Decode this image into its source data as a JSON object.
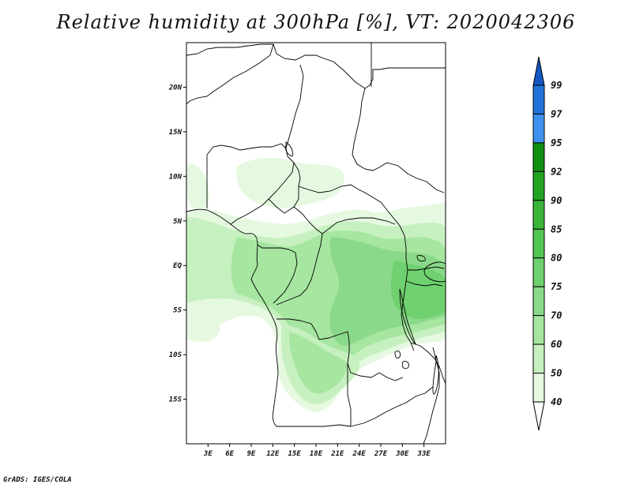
{
  "title": "Relative humidity at 300hPa [%], VT: 2020042306",
  "credit": "GrADS: IGES/COLA",
  "map": {
    "lon_range": [
      0,
      36
    ],
    "lat_range": [
      -20,
      25
    ],
    "lat_ticks": [
      {
        "lat": 20,
        "label": "20N"
      },
      {
        "lat": 15,
        "label": "15N"
      },
      {
        "lat": 10,
        "label": "10N"
      },
      {
        "lat": 5,
        "label": "5N"
      },
      {
        "lat": 0,
        "label": "EQ"
      },
      {
        "lat": -5,
        "label": "5S"
      },
      {
        "lat": -10,
        "label": "10S"
      },
      {
        "lat": -15,
        "label": "15S"
      }
    ],
    "lon_ticks": [
      {
        "lon": 3,
        "label": "3E"
      },
      {
        "lon": 6,
        "label": "6E"
      },
      {
        "lon": 9,
        "label": "9E"
      },
      {
        "lon": 12,
        "label": "12E"
      },
      {
        "lon": 15,
        "label": "15E"
      },
      {
        "lon": 18,
        "label": "18E"
      },
      {
        "lon": 21,
        "label": "21E"
      },
      {
        "lon": 24,
        "label": "24E"
      },
      {
        "lon": 27,
        "label": "27E"
      },
      {
        "lon": 30,
        "label": "30E"
      },
      {
        "lon": 33,
        "label": "33E"
      }
    ]
  },
  "colorbar": {
    "levels": [
      "99",
      "97",
      "95",
      "92",
      "90",
      "85",
      "80",
      "75",
      "70",
      "60",
      "50",
      "40"
    ],
    "colors": {
      "lt40": "#ffffff",
      "40_50": "#e5f9e0",
      "50_60": "#c7f0c0",
      "60_70": "#a6e6a0",
      "70_75": "#8ad98a",
      "75_80": "#6fd16f",
      "80_85": "#54c654",
      "85_90": "#3ab53a",
      "90_92": "#22a422",
      "92_95": "#0f8f0f",
      "95_97": "#3e92ee",
      "97_99": "#2173db",
      "gt99": "#1457c2"
    }
  }
}
